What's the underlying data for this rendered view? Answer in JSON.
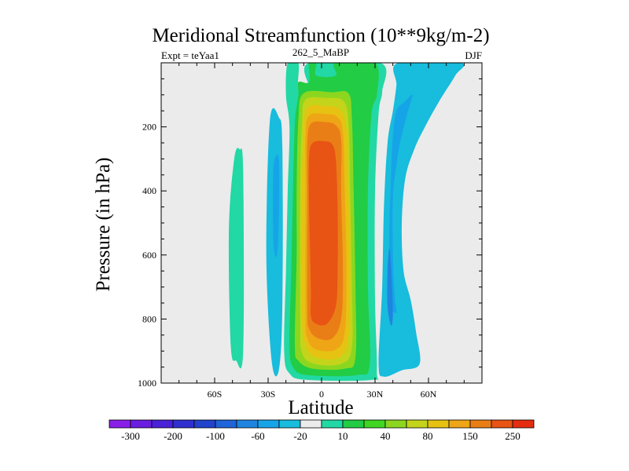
{
  "chart_data": {
    "type": "contour",
    "title": "Meridional Streamfunction (10**9kg/m-2)",
    "left_label": "Expt = teYaa1",
    "center_label": "262_5_MaBP",
    "right_label": "DJF",
    "xlabel": "Latitude",
    "ylabel": "Pressure (in hPa)",
    "xlim": [
      -90,
      90
    ],
    "ylim": [
      1000,
      0
    ],
    "x_ticks": [
      {
        "value": -60,
        "label": "60S"
      },
      {
        "value": -30,
        "label": "30S"
      },
      {
        "value": 0,
        "label": "0"
      },
      {
        "value": 30,
        "label": "30N"
      },
      {
        "value": 60,
        "label": "60N"
      }
    ],
    "y_ticks": [
      {
        "value": 200,
        "label": "200"
      },
      {
        "value": 400,
        "label": "400"
      },
      {
        "value": 600,
        "label": "600"
      },
      {
        "value": 800,
        "label": "800"
      },
      {
        "value": 1000,
        "label": "1000"
      }
    ],
    "colorbar": {
      "colors": [
        "#8a1fe8",
        "#6a1ee0",
        "#4a20d8",
        "#3030d0",
        "#2244cc",
        "#1f64d8",
        "#1f84e0",
        "#16a4e8",
        "#18bcdc",
        "#ebebeb",
        "#22d8a4",
        "#22cc44",
        "#40d622",
        "#8cd620",
        "#c4d41a",
        "#e6c212",
        "#eea516",
        "#ea7e16",
        "#e85414",
        "#e62c10"
      ],
      "labels": [
        {
          "index": 1,
          "text": "-300"
        },
        {
          "index": 3,
          "text": "-200"
        },
        {
          "index": 5,
          "text": "-100"
        },
        {
          "index": 7,
          "text": "-60"
        },
        {
          "index": 9,
          "text": "-20"
        },
        {
          "index": 11,
          "text": "10"
        },
        {
          "index": 13,
          "text": "40"
        },
        {
          "index": 15,
          "text": "80"
        },
        {
          "index": 17,
          "text": "150"
        },
        {
          "index": 19,
          "text": "250"
        }
      ]
    },
    "background_color": "#ebebeb",
    "regions": [
      {
        "name": "cell-sh-outer-positive",
        "color": "#22d8a4",
        "pts": [
          [
            -49,
            300
          ],
          [
            -46,
            270
          ],
          [
            -44,
            340
          ],
          [
            -44,
            900
          ],
          [
            -48,
            930
          ],
          [
            -51,
            880
          ],
          [
            -52,
            520
          ]
        ]
      },
      {
        "name": "cell-sh-ferrel-negative",
        "color": "#18bcdc",
        "pts": [
          [
            -29,
            180
          ],
          [
            -24,
            170
          ],
          [
            -22,
            260
          ],
          [
            -22,
            760
          ],
          [
            -24,
            960
          ],
          [
            -28,
            930
          ],
          [
            -31,
            600
          ]
        ]
      },
      {
        "name": "cell-sh-ferrel-core",
        "color": "#16a4e8",
        "pts": [
          [
            -27,
            330
          ],
          [
            -24,
            300
          ],
          [
            -24,
            480
          ],
          [
            -25,
            600
          ],
          [
            -27,
            560
          ]
        ]
      },
      {
        "name": "cell-hadley-10",
        "color": "#22d8a4",
        "pts": [
          [
            -19,
            0
          ],
          [
            -13,
            0
          ],
          [
            -13,
            80
          ],
          [
            -7,
            80
          ],
          [
            -7,
            0
          ],
          [
            33,
            0
          ],
          [
            34,
            90
          ],
          [
            32,
            160
          ],
          [
            30,
            400
          ],
          [
            30,
            740
          ],
          [
            31,
            960
          ],
          [
            28,
            990
          ],
          [
            -8,
            990
          ],
          [
            -18,
            970
          ],
          [
            -21,
            900
          ],
          [
            -20,
            650
          ],
          [
            -19,
            400
          ],
          [
            -18,
            200
          ],
          [
            -20,
            100
          ]
        ]
      },
      {
        "name": "cell-hadley-40",
        "color": "#22cc44",
        "pts": [
          [
            -7,
            0
          ],
          [
            -3,
            0
          ],
          [
            -3,
            40
          ],
          [
            8,
            40
          ],
          [
            8,
            0
          ],
          [
            30,
            0
          ],
          [
            31,
            100
          ],
          [
            28,
            160
          ],
          [
            26,
            400
          ],
          [
            26,
            700
          ],
          [
            27,
            940
          ],
          [
            20,
            975
          ],
          [
            -8,
            975
          ],
          [
            -16,
            950
          ],
          [
            -18,
            880
          ],
          [
            -17,
            650
          ],
          [
            -16,
            400
          ],
          [
            -15,
            190
          ],
          [
            -13,
            100
          ],
          [
            -13,
            60
          ],
          [
            -7,
            60
          ]
        ]
      },
      {
        "name": "cell-hadley-80",
        "color": "#8cd620",
        "pts": [
          [
            -10,
            95
          ],
          [
            6,
            92
          ],
          [
            15,
            95
          ],
          [
            17,
            170
          ],
          [
            18,
            400
          ],
          [
            19,
            700
          ],
          [
            19,
            920
          ],
          [
            13,
            955
          ],
          [
            -5,
            955
          ],
          [
            -13,
            930
          ],
          [
            -15,
            880
          ],
          [
            -14,
            600
          ],
          [
            -14,
            400
          ],
          [
            -13,
            180
          ]
        ]
      },
      {
        "name": "cell-hadley-100",
        "color": "#c4d41a",
        "pts": [
          [
            -9,
            115
          ],
          [
            3,
            110
          ],
          [
            12,
            118
          ],
          [
            15,
            180
          ],
          [
            16,
            400
          ],
          [
            17,
            700
          ],
          [
            17,
            890
          ],
          [
            11,
            940
          ],
          [
            -4,
            940
          ],
          [
            -11,
            905
          ],
          [
            -12,
            800
          ],
          [
            -12,
            400
          ],
          [
            -11,
            190
          ]
        ]
      },
      {
        "name": "cell-hadley-150",
        "color": "#e6c212",
        "pts": [
          [
            -8,
            140
          ],
          [
            2,
            135
          ],
          [
            10,
            145
          ],
          [
            14,
            210
          ],
          [
            15,
            400
          ],
          [
            16,
            650
          ],
          [
            15,
            860
          ],
          [
            10,
            920
          ],
          [
            -3,
            920
          ],
          [
            -9,
            880
          ],
          [
            -11,
            780
          ],
          [
            -11,
            400
          ],
          [
            -10,
            220
          ]
        ]
      },
      {
        "name": "cell-hadley-200",
        "color": "#eea516",
        "pts": [
          [
            -7,
            165
          ],
          [
            2,
            160
          ],
          [
            9,
            170
          ],
          [
            12,
            220
          ],
          [
            13,
            400
          ],
          [
            14,
            650
          ],
          [
            13,
            840
          ],
          [
            8,
            895
          ],
          [
            -3,
            895
          ],
          [
            -8,
            860
          ],
          [
            -9,
            780
          ],
          [
            -9,
            400
          ],
          [
            -9,
            230
          ]
        ]
      },
      {
        "name": "cell-hadley-250",
        "color": "#ea7e16",
        "pts": [
          [
            -6,
            190
          ],
          [
            2,
            185
          ],
          [
            8,
            195
          ],
          [
            11,
            240
          ],
          [
            11,
            400
          ],
          [
            12,
            650
          ],
          [
            11,
            800
          ],
          [
            6,
            860
          ],
          [
            -2,
            860
          ],
          [
            -7,
            830
          ],
          [
            -8,
            760
          ],
          [
            -8,
            400
          ],
          [
            -8,
            250
          ]
        ]
      },
      {
        "name": "cell-hadley-core",
        "color": "#e85414",
        "pts": [
          [
            -5,
            250
          ],
          [
            2,
            245
          ],
          [
            6,
            255
          ],
          [
            8,
            300
          ],
          [
            9,
            450
          ],
          [
            9,
            650
          ],
          [
            8,
            760
          ],
          [
            3,
            815
          ],
          [
            -3,
            815
          ],
          [
            -6,
            790
          ],
          [
            -6,
            700
          ],
          [
            -7,
            450
          ],
          [
            -7,
            300
          ]
        ]
      },
      {
        "name": "cell-nh-ferrel-10",
        "color": "#18bcdc",
        "pts": [
          [
            43,
            0
          ],
          [
            78,
            0
          ],
          [
            75,
            40
          ],
          [
            66,
            120
          ],
          [
            58,
            200
          ],
          [
            52,
            270
          ],
          [
            47,
            360
          ],
          [
            45,
            500
          ],
          [
            46,
            650
          ],
          [
            50,
            740
          ],
          [
            53,
            840
          ],
          [
            55,
            940
          ],
          [
            45,
            960
          ],
          [
            35,
            980
          ],
          [
            32,
            940
          ],
          [
            34,
            700
          ],
          [
            35,
            450
          ],
          [
            37,
            250
          ],
          [
            40,
            150
          ],
          [
            42,
            70
          ]
        ]
      },
      {
        "name": "cell-nh-ferrel-core",
        "color": "#16a4e8",
        "pts": [
          [
            42,
            150
          ],
          [
            47,
            120
          ],
          [
            51,
            100
          ],
          [
            48,
            160
          ],
          [
            44,
            250
          ],
          [
            42,
            320
          ],
          [
            40,
            420
          ],
          [
            40,
            600
          ],
          [
            41,
            730
          ],
          [
            42,
            780
          ],
          [
            39,
            750
          ],
          [
            38,
            560
          ],
          [
            39,
            350
          ],
          [
            40,
            230
          ]
        ]
      },
      {
        "name": "cell-nh-ferrel-inner",
        "color": "#1f84e0",
        "pts": [
          [
            38,
            580
          ],
          [
            39,
            630
          ],
          [
            40,
            780
          ],
          [
            39,
            820
          ],
          [
            37,
            760
          ],
          [
            37,
            650
          ]
        ]
      }
    ]
  }
}
